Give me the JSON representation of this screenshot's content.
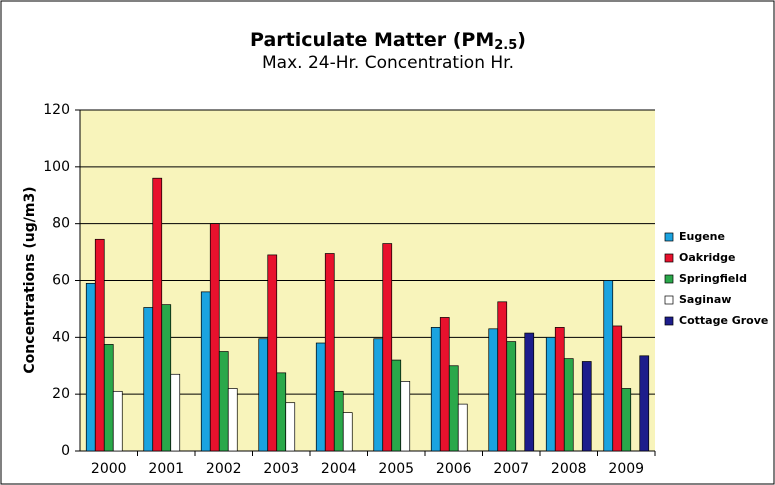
{
  "chart_data": {
    "type": "bar",
    "title": [
      "Particulate Matter (PM",
      "2.5",
      ")"
    ],
    "subtitle": "Max. 24-Hr. Concentration Hr.",
    "y_label": "Concentrations (ug/m3)",
    "categories": [
      "2000",
      "2001",
      "2002",
      "2003",
      "2004",
      "2005",
      "2006",
      "2007",
      "2008",
      "2009"
    ],
    "series": [
      {
        "name": "Eugene",
        "color": "#1ba3e0",
        "values": [
          59,
          50.5,
          56,
          39.5,
          38,
          39.5,
          43.5,
          43,
          40,
          60
        ]
      },
      {
        "name": "Oakridge",
        "color": "#e8112d",
        "values": [
          74.5,
          96,
          80,
          69,
          69.5,
          73,
          47,
          52.5,
          43.5,
          44
        ]
      },
      {
        "name": "Springfield",
        "color": "#2aa84a",
        "values": [
          37.5,
          51.5,
          35,
          27.5,
          21,
          32,
          30,
          38.5,
          32.5,
          22
        ]
      },
      {
        "name": "Saginaw",
        "color": "#ffffff",
        "values": [
          21,
          27,
          22,
          17,
          13.5,
          24.5,
          16.5,
          null,
          null,
          null
        ]
      },
      {
        "name": "Cottage Grove",
        "color": "#1d1d8c",
        "values": [
          null,
          null,
          null,
          null,
          null,
          null,
          null,
          41.5,
          31.5,
          33.5
        ]
      }
    ],
    "ylim": [
      0,
      120
    ],
    "yticks": [
      0,
      20,
      40,
      60,
      80,
      100,
      120
    ],
    "grid": true,
    "legend": "right"
  }
}
